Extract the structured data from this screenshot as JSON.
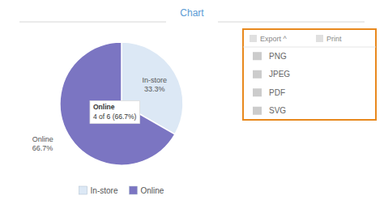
{
  "chart_data": {
    "type": "pie",
    "title": "Chart",
    "title_color": "#5b9bd5",
    "categories": [
      "In-store",
      "Online"
    ],
    "values": [
      33.3,
      66.7
    ],
    "colors": [
      "#dce8f5",
      "#7b75c2"
    ],
    "value_labels": [
      "In-store\n33.3%",
      "Online\n66.7%"
    ],
    "annotations": [
      "Online\n4 of 6 (66.7%)"
    ],
    "legend": "bottom",
    "menu_header": [
      "Export ^",
      "Print"
    ],
    "menu_items": [
      "PNG",
      "JPEG",
      "PDF",
      "SVG"
    ],
    "menu_color": "#e8891e"
  }
}
